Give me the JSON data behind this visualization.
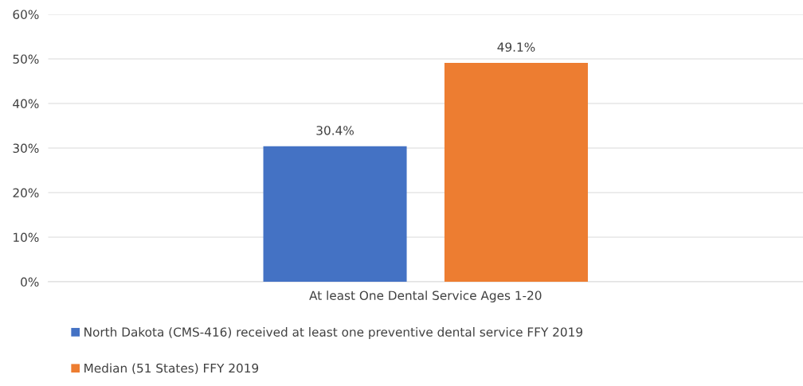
{
  "chart_data": {
    "type": "bar",
    "categories": [
      "At least One Dental Service Ages 1-20"
    ],
    "series": [
      {
        "name": "North Dakota (CMS-416) received at least one preventive dental service FFY 2019",
        "color": "#4472c4",
        "values": [
          30.4
        ],
        "value_labels": [
          "30.4%"
        ]
      },
      {
        "name": "Median (51 States) FFY 2019",
        "color": "#ed7d31",
        "values": [
          49.1
        ],
        "value_labels": [
          "49.1%"
        ]
      }
    ],
    "ylim": [
      0,
      60
    ],
    "yticks": [
      {
        "value": 0,
        "label": "0%"
      },
      {
        "value": 10,
        "label": "10%"
      },
      {
        "value": 20,
        "label": "20%"
      },
      {
        "value": 30,
        "label": "30%"
      },
      {
        "value": 40,
        "label": "40%"
      },
      {
        "value": 50,
        "label": "50%"
      },
      {
        "value": 60,
        "label": "60%"
      }
    ],
    "grid": "y",
    "legend": "bottom"
  }
}
